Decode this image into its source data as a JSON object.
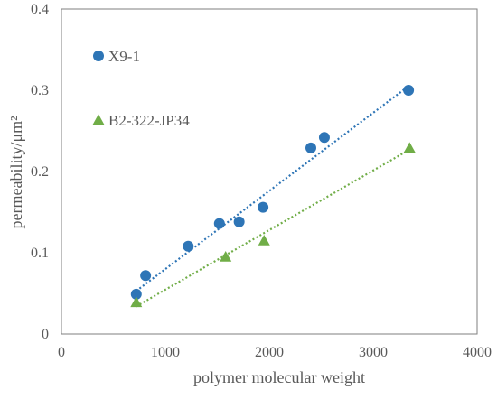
{
  "chart_data": {
    "type": "scatter",
    "xlabel": "polymer molecular weight",
    "ylabel": "permeability/μm²",
    "xlim": [
      0,
      4000
    ],
    "ylim": [
      0,
      0.4
    ],
    "x_ticks": [
      "0",
      "1000",
      "2000",
      "3000",
      "4000"
    ],
    "y_ticks": [
      "0",
      "0.1",
      "0.2",
      "0.3",
      "0.4"
    ],
    "grid": false,
    "legend_position": "inside-left",
    "series": [
      {
        "name": "X9-1",
        "marker": "circle",
        "color": "#2E75B6",
        "points": [
          {
            "x": 720,
            "y": 0.049
          },
          {
            "x": 810,
            "y": 0.072
          },
          {
            "x": 1220,
            "y": 0.108
          },
          {
            "x": 1520,
            "y": 0.136
          },
          {
            "x": 1710,
            "y": 0.138
          },
          {
            "x": 1940,
            "y": 0.156
          },
          {
            "x": 2400,
            "y": 0.229
          },
          {
            "x": 2530,
            "y": 0.242
          },
          {
            "x": 3340,
            "y": 0.3
          }
        ],
        "trendline": {
          "x_start": 720,
          "y_start": 0.053,
          "x_end": 3340,
          "y_end": 0.305
        }
      },
      {
        "name": "B2-322-JP34",
        "marker": "triangle",
        "color": "#70AD47",
        "points": [
          {
            "x": 720,
            "y": 0.039
          },
          {
            "x": 1580,
            "y": 0.095
          },
          {
            "x": 1950,
            "y": 0.115
          },
          {
            "x": 3350,
            "y": 0.229
          }
        ],
        "trendline": {
          "x_start": 720,
          "y_start": 0.034,
          "x_end": 3350,
          "y_end": 0.227
        }
      }
    ]
  }
}
